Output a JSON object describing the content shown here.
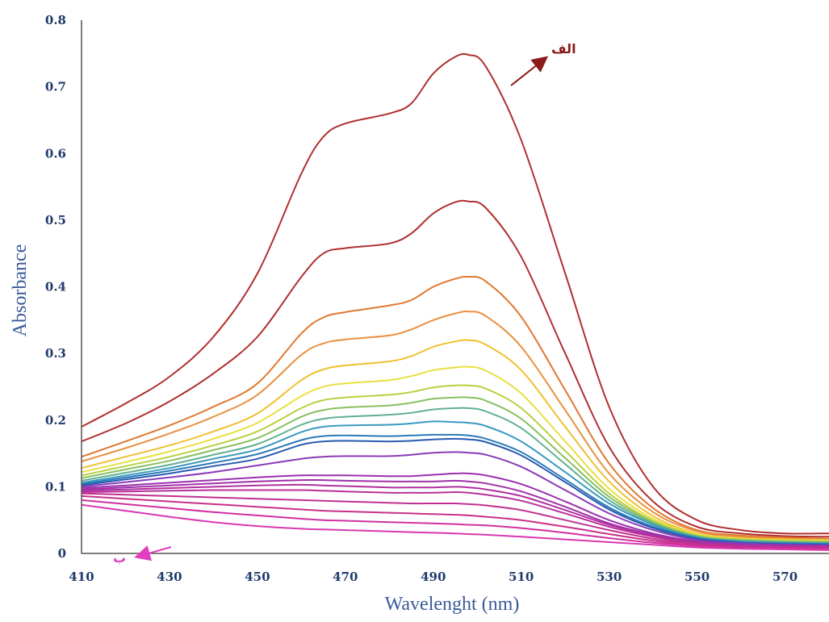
{
  "chart_data": {
    "type": "line",
    "title": "",
    "xlabel": "Wavelenght (nm)",
    "ylabel": "Absorbance",
    "xlim": [
      410,
      580
    ],
    "ylim": [
      0,
      0.8
    ],
    "xticks": [
      "410",
      "430",
      "450",
      "470",
      "490",
      "510",
      "530",
      "550",
      "570"
    ],
    "yticks": [
      "0",
      "0.1",
      "0.2",
      "0.3",
      "0.4",
      "0.5",
      "0.6",
      "0.7",
      "0.8"
    ],
    "grid": false,
    "legend": "none",
    "x": [
      410,
      420,
      430,
      440,
      450,
      460,
      465,
      470,
      480,
      485,
      490,
      495,
      498,
      502,
      510,
      520,
      530,
      540,
      550,
      560,
      570,
      580
    ],
    "series": [
      {
        "color": "#b03030",
        "values": [
          0.19,
          0.225,
          0.265,
          0.325,
          0.42,
          0.57,
          0.625,
          0.645,
          0.66,
          0.675,
          0.72,
          0.745,
          0.748,
          0.73,
          0.62,
          0.42,
          0.22,
          0.1,
          0.05,
          0.035,
          0.03,
          0.03
        ]
      },
      {
        "color": "#b03030",
        "values": [
          0.168,
          0.195,
          0.228,
          0.27,
          0.325,
          0.415,
          0.45,
          0.458,
          0.465,
          0.48,
          0.51,
          0.527,
          0.528,
          0.518,
          0.445,
          0.3,
          0.16,
          0.078,
          0.04,
          0.03,
          0.026,
          0.025
        ]
      },
      {
        "color": "#e07830",
        "values": [
          0.145,
          0.168,
          0.192,
          0.22,
          0.255,
          0.33,
          0.354,
          0.362,
          0.372,
          0.38,
          0.4,
          0.412,
          0.415,
          0.408,
          0.355,
          0.245,
          0.135,
          0.068,
          0.035,
          0.027,
          0.024,
          0.022
        ]
      },
      {
        "color": "#e89040",
        "values": [
          0.138,
          0.158,
          0.18,
          0.205,
          0.238,
          0.298,
          0.315,
          0.321,
          0.327,
          0.336,
          0.35,
          0.36,
          0.363,
          0.356,
          0.31,
          0.215,
          0.12,
          0.062,
          0.033,
          0.025,
          0.022,
          0.021
        ]
      },
      {
        "color": "#f0c030",
        "values": [
          0.128,
          0.145,
          0.162,
          0.183,
          0.21,
          0.26,
          0.276,
          0.282,
          0.288,
          0.296,
          0.31,
          0.318,
          0.32,
          0.313,
          0.275,
          0.19,
          0.108,
          0.056,
          0.03,
          0.023,
          0.021,
          0.02
        ]
      },
      {
        "color": "#e8e040",
        "values": [
          0.122,
          0.137,
          0.153,
          0.172,
          0.196,
          0.236,
          0.25,
          0.255,
          0.26,
          0.266,
          0.275,
          0.279,
          0.28,
          0.274,
          0.24,
          0.168,
          0.097,
          0.052,
          0.029,
          0.022,
          0.02,
          0.019
        ]
      },
      {
        "color": "#b8d040",
        "values": [
          0.117,
          0.131,
          0.145,
          0.162,
          0.183,
          0.218,
          0.23,
          0.234,
          0.238,
          0.242,
          0.249,
          0.252,
          0.252,
          0.247,
          0.218,
          0.154,
          0.09,
          0.049,
          0.027,
          0.021,
          0.019,
          0.018
        ]
      },
      {
        "color": "#88c060",
        "values": [
          0.113,
          0.126,
          0.139,
          0.155,
          0.173,
          0.205,
          0.215,
          0.219,
          0.222,
          0.226,
          0.232,
          0.234,
          0.234,
          0.229,
          0.202,
          0.143,
          0.085,
          0.047,
          0.026,
          0.02,
          0.018,
          0.017
        ]
      },
      {
        "color": "#60b090",
        "values": [
          0.109,
          0.121,
          0.133,
          0.148,
          0.164,
          0.193,
          0.202,
          0.205,
          0.208,
          0.211,
          0.216,
          0.218,
          0.218,
          0.213,
          0.188,
          0.134,
          0.08,
          0.045,
          0.025,
          0.019,
          0.017,
          0.016
        ]
      },
      {
        "color": "#3a9ac0",
        "values": [
          0.106,
          0.117,
          0.128,
          0.142,
          0.156,
          0.182,
          0.19,
          0.192,
          0.193,
          0.195,
          0.198,
          0.197,
          0.196,
          0.191,
          0.168,
          0.122,
          0.075,
          0.043,
          0.024,
          0.018,
          0.016,
          0.015
        ]
      },
      {
        "color": "#2a7ab8",
        "values": [
          0.104,
          0.114,
          0.124,
          0.136,
          0.149,
          0.17,
          0.176,
          0.177,
          0.176,
          0.177,
          0.178,
          0.178,
          0.177,
          0.172,
          0.152,
          0.111,
          0.069,
          0.04,
          0.023,
          0.017,
          0.015,
          0.014
        ]
      },
      {
        "color": "#2a5ab0",
        "values": [
          0.102,
          0.111,
          0.12,
          0.131,
          0.142,
          0.163,
          0.168,
          0.169,
          0.168,
          0.169,
          0.171,
          0.172,
          0.171,
          0.167,
          0.147,
          0.107,
          0.066,
          0.038,
          0.022,
          0.016,
          0.014,
          0.013
        ]
      },
      {
        "color": "#8a3ab8",
        "values": [
          0.1,
          0.107,
          0.114,
          0.122,
          0.132,
          0.142,
          0.145,
          0.146,
          0.146,
          0.148,
          0.151,
          0.152,
          0.151,
          0.148,
          0.13,
          0.095,
          0.06,
          0.035,
          0.02,
          0.015,
          0.013,
          0.012
        ]
      },
      {
        "color": "#9a30b0",
        "values": [
          0.098,
          0.102,
          0.106,
          0.11,
          0.114,
          0.117,
          0.117,
          0.117,
          0.116,
          0.116,
          0.118,
          0.12,
          0.12,
          0.117,
          0.104,
          0.078,
          0.05,
          0.03,
          0.018,
          0.013,
          0.012,
          0.011
        ]
      },
      {
        "color": "#a030a8",
        "values": [
          0.096,
          0.099,
          0.102,
          0.105,
          0.108,
          0.11,
          0.11,
          0.109,
          0.108,
          0.108,
          0.108,
          0.109,
          0.108,
          0.105,
          0.093,
          0.07,
          0.045,
          0.028,
          0.017,
          0.012,
          0.011,
          0.01
        ]
      },
      {
        "color": "#b030a0",
        "values": [
          0.094,
          0.096,
          0.098,
          0.1,
          0.102,
          0.103,
          0.102,
          0.101,
          0.099,
          0.099,
          0.099,
          0.1,
          0.099,
          0.096,
          0.086,
          0.065,
          0.043,
          0.027,
          0.016,
          0.012,
          0.01,
          0.01
        ]
      },
      {
        "color": "#b83098",
        "values": [
          0.092,
          0.093,
          0.094,
          0.095,
          0.095,
          0.095,
          0.094,
          0.093,
          0.091,
          0.091,
          0.091,
          0.092,
          0.091,
          0.088,
          0.079,
          0.06,
          0.04,
          0.025,
          0.015,
          0.011,
          0.01,
          0.009
        ]
      },
      {
        "color": "#c03090",
        "values": [
          0.09,
          0.088,
          0.086,
          0.084,
          0.082,
          0.08,
          0.079,
          0.078,
          0.076,
          0.075,
          0.075,
          0.075,
          0.074,
          0.072,
          0.065,
          0.05,
          0.035,
          0.022,
          0.014,
          0.01,
          0.009,
          0.008
        ]
      },
      {
        "color": "#c83088",
        "values": [
          0.086,
          0.082,
          0.078,
          0.074,
          0.07,
          0.066,
          0.064,
          0.063,
          0.061,
          0.06,
          0.059,
          0.058,
          0.057,
          0.055,
          0.05,
          0.04,
          0.029,
          0.019,
          0.012,
          0.009,
          0.008,
          0.007
        ]
      },
      {
        "color": "#d030a0",
        "values": [
          0.08,
          0.074,
          0.068,
          0.062,
          0.057,
          0.052,
          0.05,
          0.049,
          0.047,
          0.046,
          0.045,
          0.044,
          0.043,
          0.042,
          0.038,
          0.031,
          0.023,
          0.016,
          0.011,
          0.008,
          0.007,
          0.006
        ]
      },
      {
        "color": "#d838b0",
        "values": [
          0.073,
          0.064,
          0.055,
          0.047,
          0.041,
          0.037,
          0.036,
          0.035,
          0.033,
          0.032,
          0.031,
          0.03,
          0.029,
          0.028,
          0.025,
          0.021,
          0.017,
          0.013,
          0.009,
          0.007,
          0.006,
          0.005
        ]
      }
    ],
    "annotations": [
      {
        "text": "الف",
        "color": "#8b1a1a"
      },
      {
        "text": "ب",
        "color": "#e040c0"
      }
    ]
  }
}
